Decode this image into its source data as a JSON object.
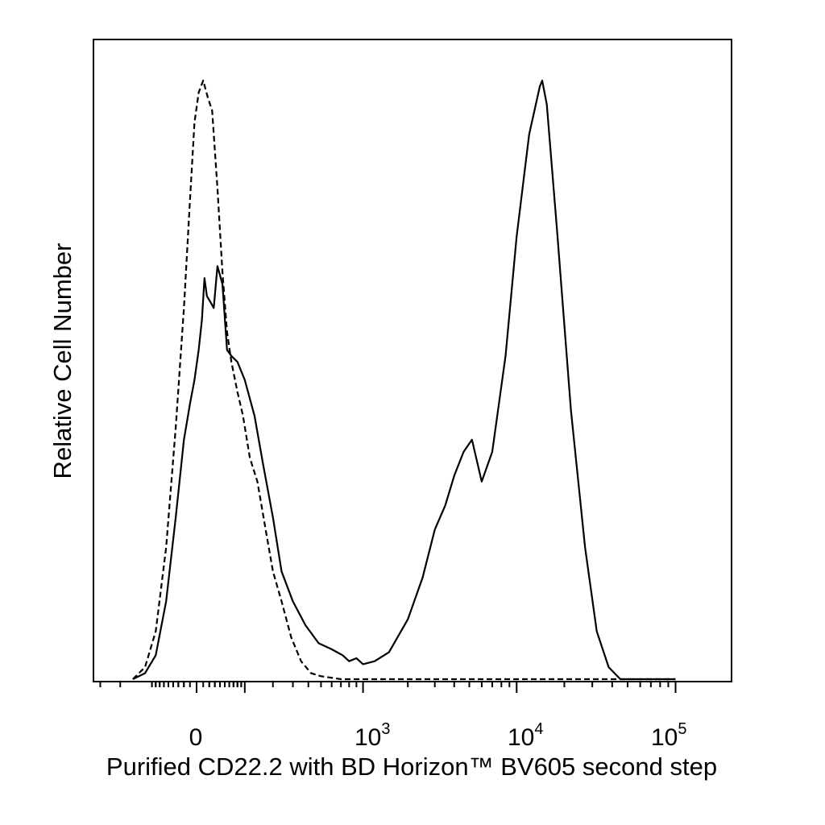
{
  "chart_data": {
    "type": "line",
    "title": "",
    "xlabel": "Purified CD22.2 with BD Horizon™ BV605 second step",
    "ylabel": "Relative Cell Number",
    "x_scale": "biexponential",
    "grid": false,
    "legend": "none",
    "x_tick_labels": [
      {
        "base": "0",
        "exp": ""
      },
      {
        "base": "10",
        "exp": "3"
      },
      {
        "base": "10",
        "exp": "4"
      },
      {
        "base": "10",
        "exp": "5"
      }
    ],
    "series": [
      {
        "style": "dashed",
        "points": [
          [
            -150,
            0.0
          ],
          [
            -110,
            0.02
          ],
          [
            -80,
            0.08
          ],
          [
            -55,
            0.22
          ],
          [
            -35,
            0.42
          ],
          [
            -20,
            0.62
          ],
          [
            -10,
            0.8
          ],
          [
            -3,
            0.93
          ],
          [
            3,
            0.98
          ],
          [
            10,
            1.0
          ],
          [
            18,
            0.97
          ],
          [
            25,
            0.95
          ],
          [
            35,
            0.82
          ],
          [
            45,
            0.68
          ],
          [
            55,
            0.58
          ],
          [
            65,
            0.53
          ],
          [
            80,
            0.48
          ],
          [
            95,
            0.44
          ],
          [
            115,
            0.37
          ],
          [
            140,
            0.33
          ],
          [
            170,
            0.25
          ],
          [
            200,
            0.18
          ],
          [
            240,
            0.13
          ],
          [
            290,
            0.07
          ],
          [
            350,
            0.03
          ],
          [
            420,
            0.01
          ],
          [
            500,
            0.005
          ],
          [
            700,
            0.0
          ],
          [
            1000,
            0.0
          ],
          [
            3000,
            0.0
          ],
          [
            10000,
            0.0
          ],
          [
            40000,
            0.0
          ],
          [
            100000,
            0.0
          ]
        ]
      },
      {
        "style": "solid",
        "points": [
          [
            -150,
            0.0
          ],
          [
            -110,
            0.01
          ],
          [
            -80,
            0.04
          ],
          [
            -55,
            0.13
          ],
          [
            -35,
            0.27
          ],
          [
            -20,
            0.4
          ],
          [
            -10,
            0.46
          ],
          [
            -3,
            0.5
          ],
          [
            3,
            0.55
          ],
          [
            8,
            0.6
          ],
          [
            12,
            0.67
          ],
          [
            16,
            0.64
          ],
          [
            22,
            0.63
          ],
          [
            28,
            0.62
          ],
          [
            35,
            0.69
          ],
          [
            45,
            0.66
          ],
          [
            55,
            0.55
          ],
          [
            65,
            0.54
          ],
          [
            80,
            0.53
          ],
          [
            100,
            0.5
          ],
          [
            130,
            0.44
          ],
          [
            160,
            0.36
          ],
          [
            200,
            0.27
          ],
          [
            240,
            0.18
          ],
          [
            300,
            0.13
          ],
          [
            380,
            0.09
          ],
          [
            480,
            0.06
          ],
          [
            600,
            0.05
          ],
          [
            720,
            0.04
          ],
          [
            800,
            0.03
          ],
          [
            900,
            0.035
          ],
          [
            1000,
            0.025
          ],
          [
            1200,
            0.03
          ],
          [
            1500,
            0.045
          ],
          [
            2000,
            0.1
          ],
          [
            2500,
            0.17
          ],
          [
            3000,
            0.25
          ],
          [
            3500,
            0.29
          ],
          [
            4000,
            0.34
          ],
          [
            4600,
            0.38
          ],
          [
            5200,
            0.4
          ],
          [
            6000,
            0.33
          ],
          [
            7000,
            0.38
          ],
          [
            8500,
            0.54
          ],
          [
            10000,
            0.74
          ],
          [
            12000,
            0.91
          ],
          [
            14000,
            0.99
          ],
          [
            14500,
            1.0
          ],
          [
            15500,
            0.96
          ],
          [
            18000,
            0.75
          ],
          [
            22000,
            0.45
          ],
          [
            27000,
            0.22
          ],
          [
            32000,
            0.08
          ],
          [
            38000,
            0.02
          ],
          [
            45000,
            0.0
          ],
          [
            100000,
            0.0
          ]
        ]
      }
    ]
  }
}
